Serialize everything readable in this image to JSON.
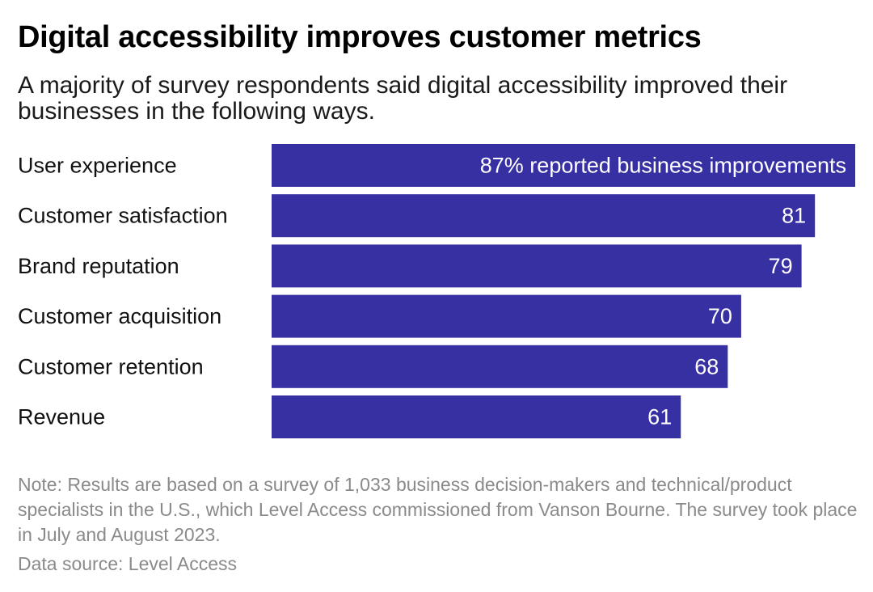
{
  "chart_data": {
    "type": "bar",
    "orientation": "horizontal",
    "title": "Digital accessibility improves customer metrics",
    "subtitle": "A majority of survey respondents said digital accessibility improved their businesses in the following ways.",
    "categories": [
      "User experience",
      "Customer satisfaction",
      "Brand reputation",
      "Customer acquisition",
      "Customer retention",
      "Revenue"
    ],
    "values": [
      87,
      81,
      79,
      70,
      68,
      61
    ],
    "value_labels": [
      "87% reported business improvements",
      "81",
      "79",
      "70",
      "68",
      "61"
    ],
    "xlim": [
      0,
      87
    ],
    "unit": "%",
    "bar_color": "#3730a3",
    "label_color": "#ffffff",
    "note": "Note: Results are based on a survey of 1,033 business decision-makers and technical/product specialists in the U.S., which Level Access commissioned from Vanson Bourne. The survey took place in July and August 2023.",
    "source": "Data source: Level Access"
  }
}
